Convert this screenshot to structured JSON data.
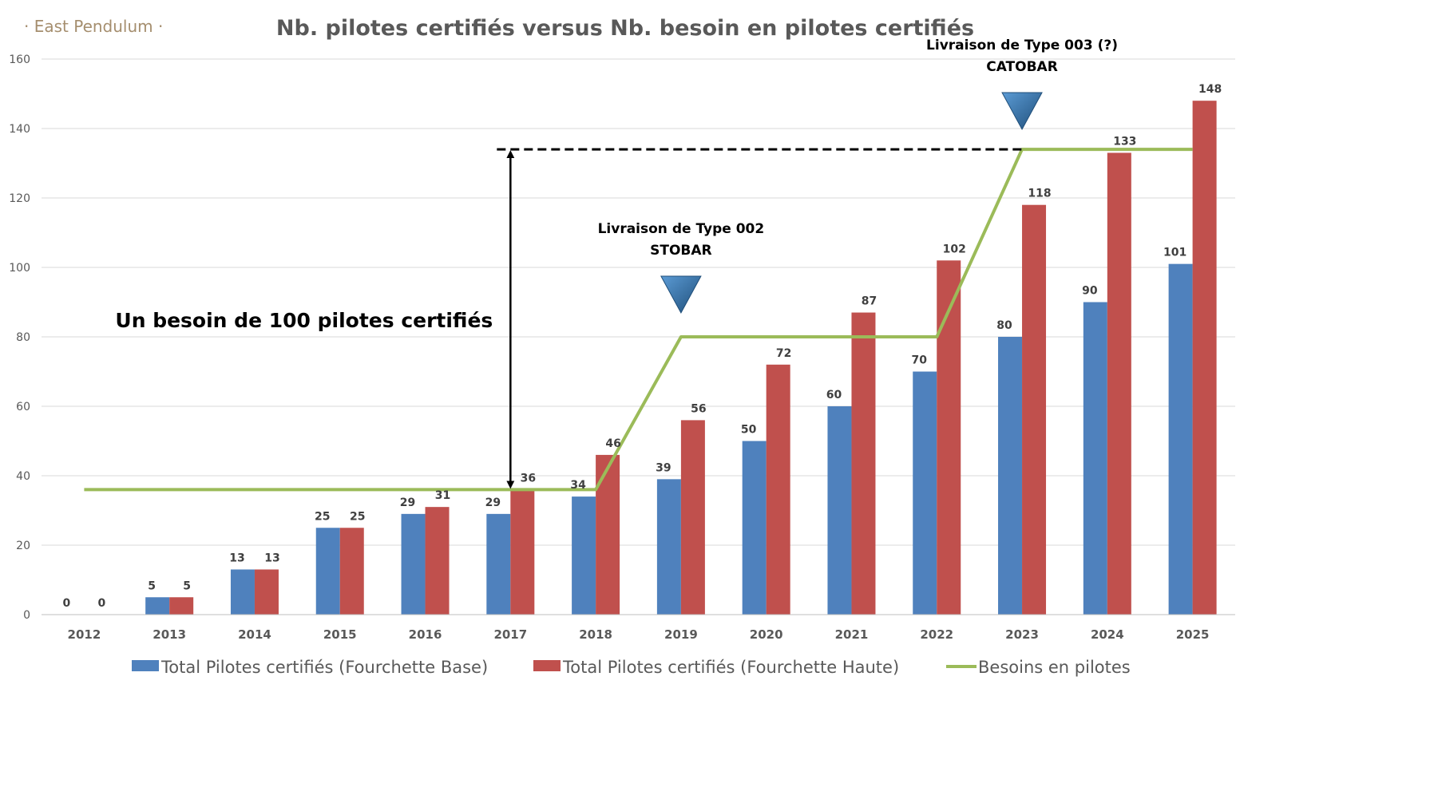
{
  "logo_text": "· East Pendulum ·",
  "chart_data": {
    "type": "bar",
    "title": "Nb. pilotes certifiés versus Nb. besoin en pilotes certifiés",
    "xlabel": "",
    "ylabel": "",
    "ylim": [
      0,
      160
    ],
    "yticks": [
      0,
      20,
      40,
      60,
      80,
      100,
      120,
      140,
      160
    ],
    "grid": true,
    "legend_position": "bottom",
    "categories": [
      "2012",
      "2013",
      "2014",
      "2015",
      "2016",
      "2017",
      "2018",
      "2019",
      "2020",
      "2021",
      "2022",
      "2023",
      "2024",
      "2025"
    ],
    "series": [
      {
        "name": "Total Pilotes certifiés (Fourchette Base)",
        "type": "bar",
        "color": "#4f81bd",
        "values": [
          0,
          5,
          13,
          25,
          29,
          29,
          34,
          39,
          50,
          60,
          70,
          80,
          90,
          101
        ]
      },
      {
        "name": "Total Pilotes certifiés (Fourchette Haute)",
        "type": "bar",
        "color": "#c0504d",
        "values": [
          0,
          5,
          13,
          25,
          31,
          36,
          46,
          56,
          72,
          87,
          102,
          118,
          133,
          148
        ]
      },
      {
        "name": "Besoins en pilotes",
        "type": "line",
        "color": "#9bbb59",
        "values": [
          36,
          36,
          36,
          36,
          36,
          36,
          36,
          80,
          80,
          80,
          80,
          134,
          134,
          134
        ]
      }
    ],
    "annotations": [
      {
        "id": "type002",
        "lines": [
          "Livraison de Type 002",
          "STOBAR"
        ],
        "category": "2019",
        "marker": "down-triangle"
      },
      {
        "id": "type003",
        "lines": [
          "Livraison de Type 003 (?)",
          "CATOBAR"
        ],
        "category": "2023",
        "marker": "down-triangle"
      },
      {
        "id": "need",
        "text": "Un besoin de 100 pilotes certifiés",
        "from_value": 36,
        "to_value": 134,
        "category": "2017"
      }
    ]
  }
}
